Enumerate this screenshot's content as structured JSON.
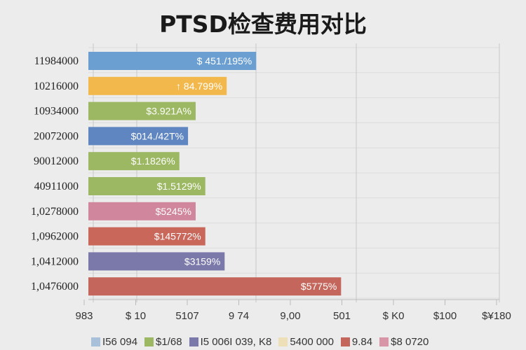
{
  "chart_data": {
    "type": "bar",
    "orientation": "horizontal",
    "title": "PTSD检查费用对比",
    "categories": [
      "11984000",
      "10216000",
      "10934000",
      "20072000",
      "90012000",
      "40911000",
      "1,0278000",
      "1,0962000",
      "1,0412000",
      "1,0476000"
    ],
    "values": [
      3.3,
      2.72,
      2.11,
      1.96,
      1.79,
      2.3,
      2.11,
      2.3,
      2.68,
      4.97
    ],
    "data_labels": [
      "$ 451./195%",
      "↑ 84.799%",
      "$3.921A%",
      "$014./42T%",
      "$1.1826%",
      "$1.5129%",
      "$5245%",
      "$145772%",
      "$3159%",
      "$5775%"
    ],
    "colors": [
      "#6b9fd1",
      "#f3b84c",
      "#9cb862",
      "#5f86c1",
      "#9cb862",
      "#9cb862",
      "#d0869c",
      "#c9675b",
      "#7b79a9",
      "#c4665c"
    ],
    "x_tick_labels": [
      "983",
      "$ 10",
      "5107",
      "9 74",
      "9,00",
      "501",
      "$ K0",
      "$100",
      "$¥180"
    ],
    "xlim": [
      0,
      8
    ],
    "grid": true,
    "legend_position": "bottom",
    "legend": [
      {
        "label": "I56 094",
        "color": "#a9c0da"
      },
      {
        "label": "$1/68",
        "color": "#9cb862"
      },
      {
        "label": "I5 006I  039, K8",
        "color": "#7b79a9"
      },
      {
        "label": "5400 000",
        "color": "#ede0b8"
      },
      {
        "label": "9.84",
        "color": "#c4665c"
      },
      {
        "label": "$8 0720",
        "color": "#d895a8"
      }
    ]
  }
}
